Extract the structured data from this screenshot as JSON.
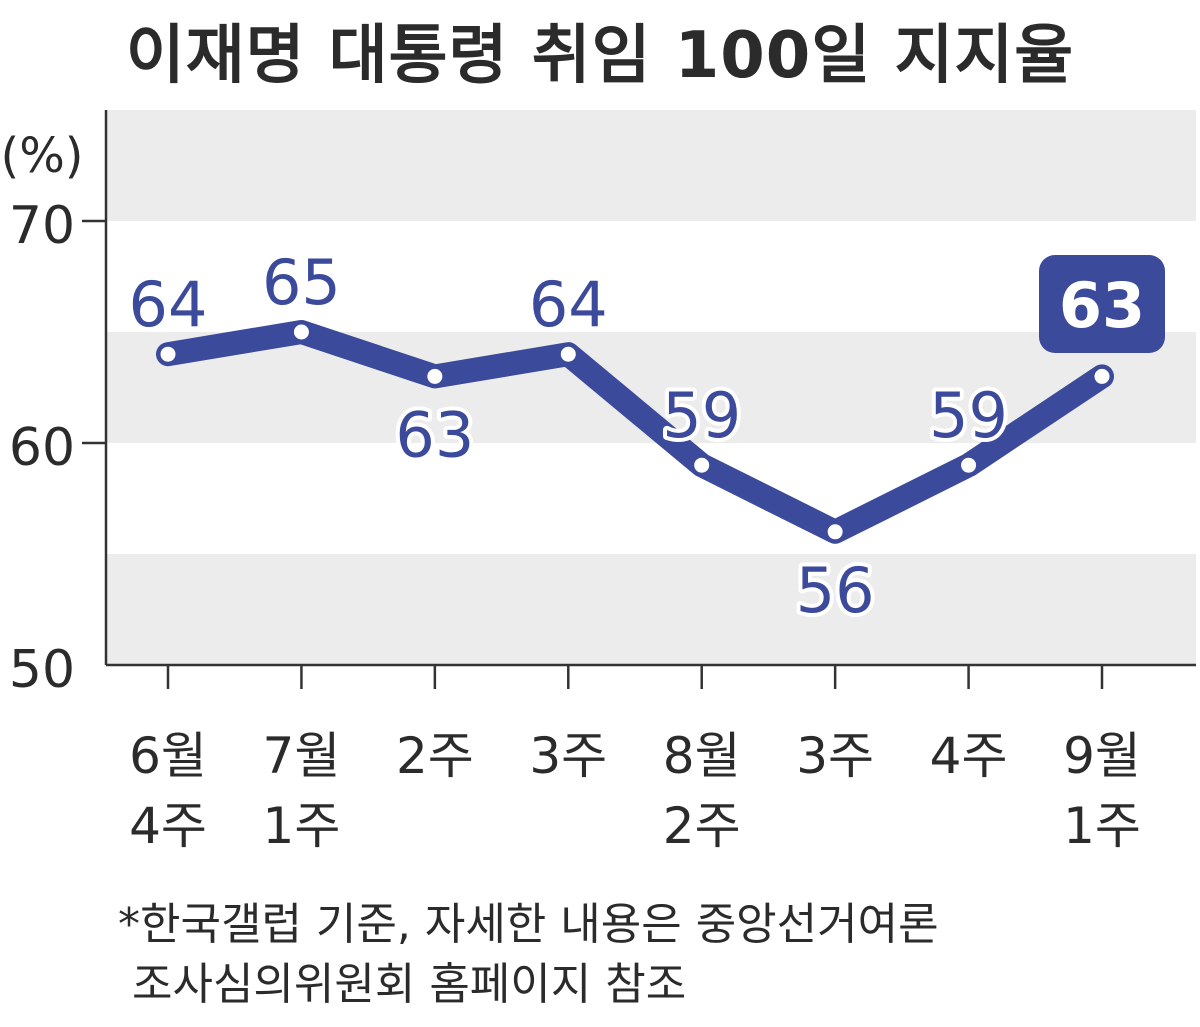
{
  "chart_data": {
    "type": "line",
    "title": "이재명 대통령 취임 100일 지지율",
    "unit_label": "(%)",
    "ylim": [
      50,
      75
    ],
    "y_ticks": [
      50,
      60,
      70
    ],
    "categories": [
      [
        "6월",
        "4주"
      ],
      [
        "7월",
        "1주"
      ],
      [
        "2주"
      ],
      [
        "3주"
      ],
      [
        "8월",
        "2주"
      ],
      [
        "3주"
      ],
      [
        "4주"
      ],
      [
        "9월",
        "1주"
      ]
    ],
    "series": [
      {
        "values": [
          64,
          65,
          63,
          64,
          59,
          56,
          59,
          63
        ]
      }
    ],
    "data_labels": [
      "64",
      "65",
      "63",
      "64",
      "59",
      "56",
      "59",
      "63"
    ],
    "highlight_last": true,
    "grid": "alternating horizontal bands",
    "colors": {
      "line": "#3b4a9a",
      "band": "#ececec",
      "axis": "#333333"
    }
  },
  "footnote": [
    "*한국갤럽 기준, 자세한 내용은 중앙선거여론",
    " 조사심의위원회 홈페이지 참조"
  ]
}
